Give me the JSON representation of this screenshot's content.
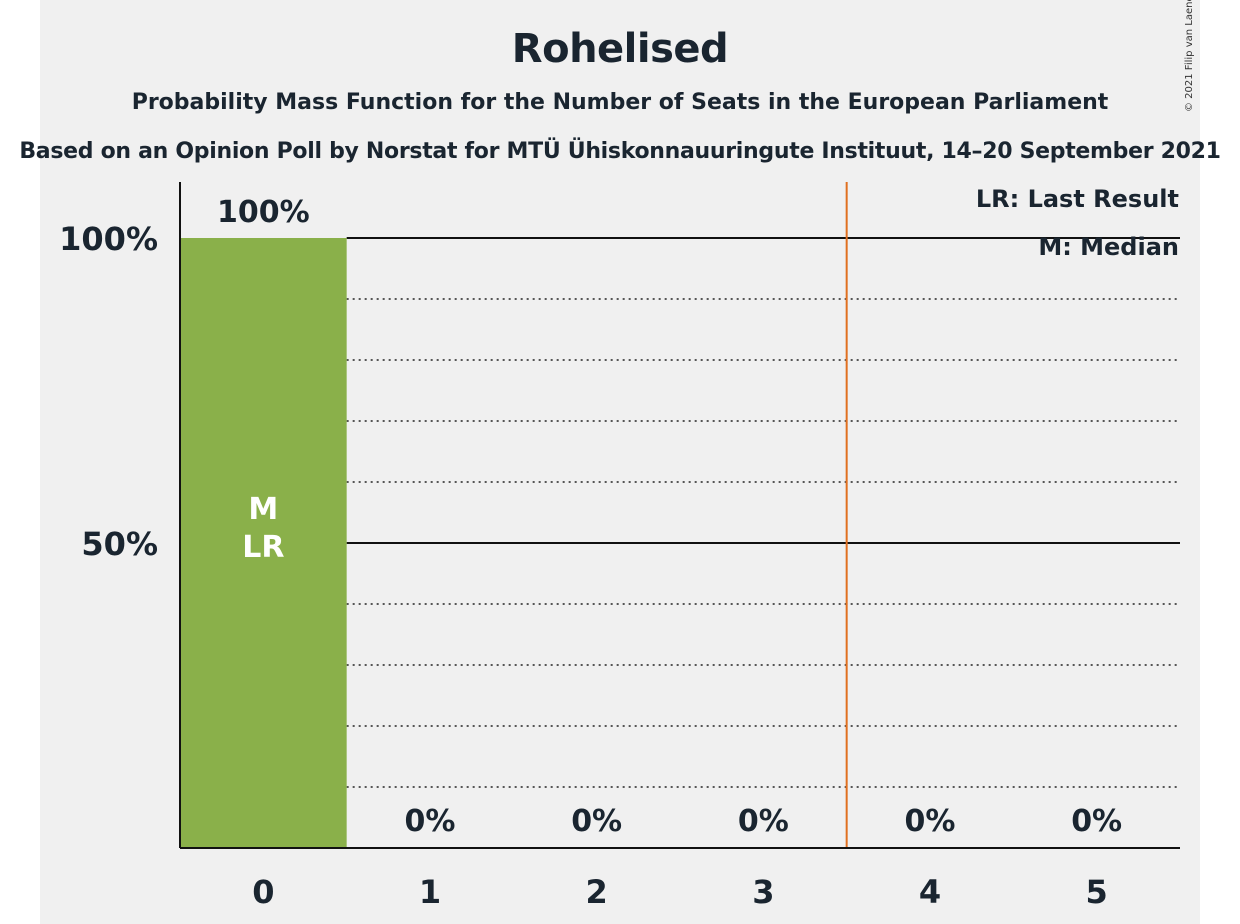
{
  "title": "Rohelised",
  "subtitle": "Probability Mass Function for the Number of Seats in the European Parliament",
  "subtitle2": "Based on an Opinion Poll by Norstat for MTÜ Ühiskonnauuringute Instituut, 14–20 September 2021",
  "copyright": "© 2021 Filip van Laenen",
  "legend": {
    "last_result": "LR: Last Result",
    "median": "M: Median"
  },
  "colors": {
    "background": "#f0f0f0",
    "bar": "#8ab04a",
    "majority_line": "#e07020",
    "text": "#1a2530"
  },
  "chart_data": {
    "type": "bar",
    "categories": [
      "0",
      "1",
      "2",
      "3",
      "4",
      "5"
    ],
    "values": [
      100,
      0,
      0,
      0,
      0,
      0
    ],
    "value_labels": [
      "100%",
      "0%",
      "0%",
      "0%",
      "0%",
      "0%"
    ],
    "bar_annotations": {
      "0": [
        "M",
        "LR"
      ]
    },
    "ylim": [
      0,
      100
    ],
    "yticks": [
      {
        "value": 100,
        "label": "100%"
      },
      {
        "value": 50,
        "label": "50%"
      }
    ],
    "grid": {
      "major": [
        50,
        100
      ],
      "minor": [
        10,
        20,
        30,
        40,
        60,
        70,
        80,
        90
      ]
    },
    "vertical_line_between": [
      3,
      4
    ],
    "legend_position": "top-right",
    "xlabel": "",
    "ylabel": ""
  }
}
